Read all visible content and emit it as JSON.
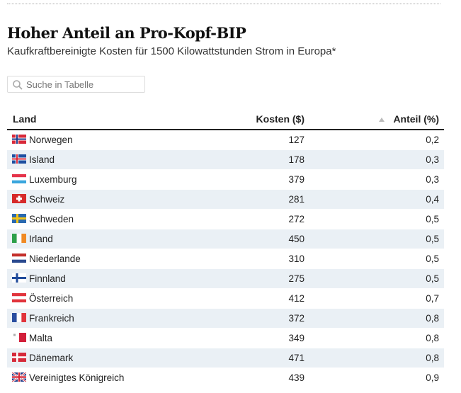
{
  "header": {
    "title": "Hoher Anteil an Pro-Kopf-BIP",
    "subtitle": "Kaufkraftbereinigte Kosten für 1500 Kilowattstunden Strom in Europa*"
  },
  "search": {
    "placeholder": "Suche in Tabelle",
    "value": ""
  },
  "table": {
    "columns": [
      "Land",
      "Kosten ($)",
      "Anteil (%)"
    ],
    "sorted_column": "Anteil (%)",
    "rows": [
      {
        "land": "Norwegen",
        "kosten": "127",
        "anteil": "0,2",
        "flag": "norway-flag"
      },
      {
        "land": "Island",
        "kosten": "178",
        "anteil": "0,3",
        "flag": "iceland-flag"
      },
      {
        "land": "Luxemburg",
        "kosten": "379",
        "anteil": "0,3",
        "flag": "luxembourg-flag"
      },
      {
        "land": "Schweiz",
        "kosten": "281",
        "anteil": "0,4",
        "flag": "switzerland-flag"
      },
      {
        "land": "Schweden",
        "kosten": "272",
        "anteil": "0,5",
        "flag": "sweden-flag"
      },
      {
        "land": "Irland",
        "kosten": "450",
        "anteil": "0,5",
        "flag": "ireland-flag"
      },
      {
        "land": "Niederlande",
        "kosten": "310",
        "anteil": "0,5",
        "flag": "netherlands-flag"
      },
      {
        "land": "Finnland",
        "kosten": "275",
        "anteil": "0,5",
        "flag": "finland-flag"
      },
      {
        "land": "Österreich",
        "kosten": "412",
        "anteil": "0,7",
        "flag": "austria-flag"
      },
      {
        "land": "Frankreich",
        "kosten": "372",
        "anteil": "0,8",
        "flag": "france-flag"
      },
      {
        "land": "Malta",
        "kosten": "349",
        "anteil": "0,8",
        "flag": "malta-flag"
      },
      {
        "land": "Dänemark",
        "kosten": "471",
        "anteil": "0,8",
        "flag": "denmark-flag"
      },
      {
        "land": "Vereinigtes Königreich",
        "kosten": "439",
        "anteil": "0,9",
        "flag": "uk-flag"
      }
    ]
  }
}
